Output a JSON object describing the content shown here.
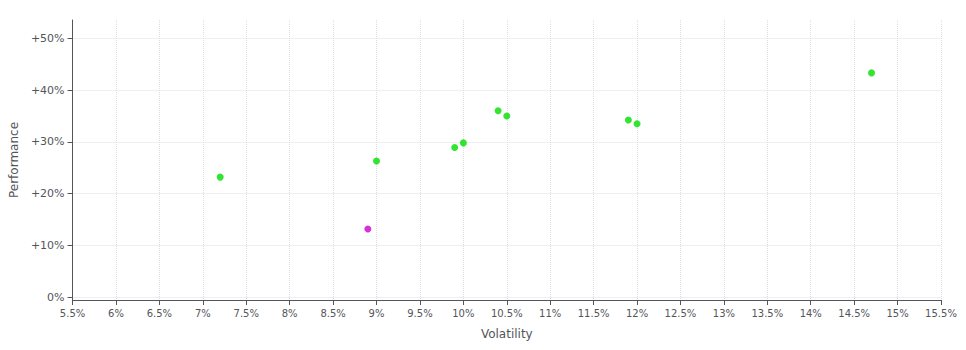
{
  "chart_data": {
    "type": "scatter",
    "xlabel": "Volatility",
    "ylabel": "Performance",
    "xlim": [
      0.055,
      0.155
    ],
    "ylim": [
      -0.005,
      0.535
    ],
    "xticks": [
      {
        "value": 0.055,
        "label": "5.5%"
      },
      {
        "value": 0.06,
        "label": "6%"
      },
      {
        "value": 0.065,
        "label": "6.5%"
      },
      {
        "value": 0.07,
        "label": "7%"
      },
      {
        "value": 0.075,
        "label": "7.5%"
      },
      {
        "value": 0.08,
        "label": "8%"
      },
      {
        "value": 0.085,
        "label": "8.5%"
      },
      {
        "value": 0.09,
        "label": "9%"
      },
      {
        "value": 0.095,
        "label": "9.5%"
      },
      {
        "value": 0.1,
        "label": "10%"
      },
      {
        "value": 0.105,
        "label": "10.5%"
      },
      {
        "value": 0.11,
        "label": "11%"
      },
      {
        "value": 0.115,
        "label": "11.5%"
      },
      {
        "value": 0.12,
        "label": "12%"
      },
      {
        "value": 0.125,
        "label": "12.5%"
      },
      {
        "value": 0.13,
        "label": "13%"
      },
      {
        "value": 0.135,
        "label": "13.5%"
      },
      {
        "value": 0.14,
        "label": "14%"
      },
      {
        "value": 0.145,
        "label": "14.5%"
      },
      {
        "value": 0.15,
        "label": "15%"
      },
      {
        "value": 0.155,
        "label": "15.5%"
      }
    ],
    "yticks": [
      {
        "value": 0.0,
        "label": "0%"
      },
      {
        "value": 0.1,
        "label": "+10%"
      },
      {
        "value": 0.2,
        "label": "+20%"
      },
      {
        "value": 0.3,
        "label": "+30%"
      },
      {
        "value": 0.4,
        "label": "+40%"
      },
      {
        "value": 0.5,
        "label": "+50%"
      }
    ],
    "grid": true,
    "series": [
      {
        "color": "#00dd00",
        "x": [
          0.072,
          0.09,
          0.099,
          0.1,
          0.104,
          0.105,
          0.119,
          0.12,
          0.147
        ],
        "values": [
          0.232,
          0.263,
          0.289,
          0.298,
          0.36,
          0.35,
          0.342,
          0.335,
          0.433
        ]
      },
      {
        "color": "#cc00cc",
        "x": [
          0.089
        ],
        "values": [
          0.132
        ]
      }
    ]
  }
}
